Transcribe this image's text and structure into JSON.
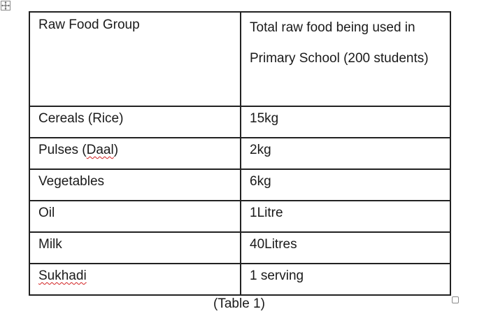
{
  "table": {
    "header": {
      "col1": "Raw Food Group",
      "col2": "Total raw food being used in Primary School (200 students)"
    },
    "rows": [
      {
        "group": "Cereals (Rice)",
        "amount": "15kg"
      },
      {
        "group_pre": "Pulses (",
        "group_flag": "Daal",
        "group_post": ")",
        "amount": "2kg"
      },
      {
        "group": "Vegetables",
        "amount": "6kg"
      },
      {
        "group": "Oil",
        "amount": "1Litre"
      },
      {
        "group": "Milk",
        "amount": "40Litres"
      },
      {
        "group_flag": "Sukhadi",
        "amount": "1 serving"
      }
    ]
  },
  "caption": "(Table 1)",
  "icons": {
    "move_handle": "move-arrows-icon",
    "resize_handle": "resize-square-icon"
  },
  "colors": {
    "spellcheck_underline": "#d21f1f",
    "border": "#222222"
  }
}
